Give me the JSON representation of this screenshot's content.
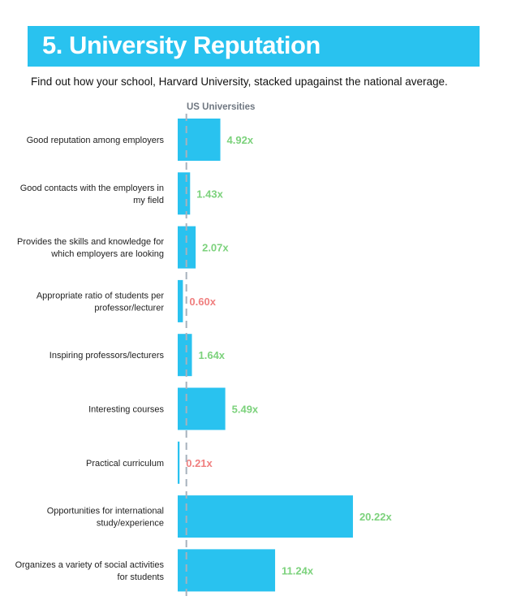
{
  "header": {
    "title": "5. University Reputation",
    "subtitle": "Find out how your school, Harvard University, stacked upagainst the national average."
  },
  "colors": {
    "header_bg": "#29c2ef",
    "bar": "#29c2ef",
    "above_baseline": "#7cd27c",
    "below_baseline": "#f07f7f",
    "baseline_line": "#a7b2bd"
  },
  "chart_data": {
    "type": "bar",
    "orientation": "horizontal",
    "series_label": "US Universities",
    "baseline": 1,
    "categories": [
      [
        "Good reputation among employers"
      ],
      [
        "Good contacts with the employers in",
        "my field"
      ],
      [
        "Provides the skills and knowledge for",
        "which employers are looking"
      ],
      [
        "Appropriate ratio of students per",
        "professor/lecturer"
      ],
      [
        "Inspiring professors/lecturers"
      ],
      [
        "Interesting courses"
      ],
      [
        "Practical curriculum"
      ],
      [
        "Opportunities for international",
        "study/experience"
      ],
      [
        "Organizes a variety of social activities",
        "for students"
      ]
    ],
    "values": [
      4.92,
      1.43,
      2.07,
      0.6,
      1.64,
      5.49,
      0.21,
      20.22,
      11.24
    ],
    "labels": [
      "4.92x",
      "1.43x",
      "2.07x",
      "0.60x",
      "1.64x",
      "5.49x",
      "0.21x",
      "20.22x",
      "11.24x"
    ]
  }
}
